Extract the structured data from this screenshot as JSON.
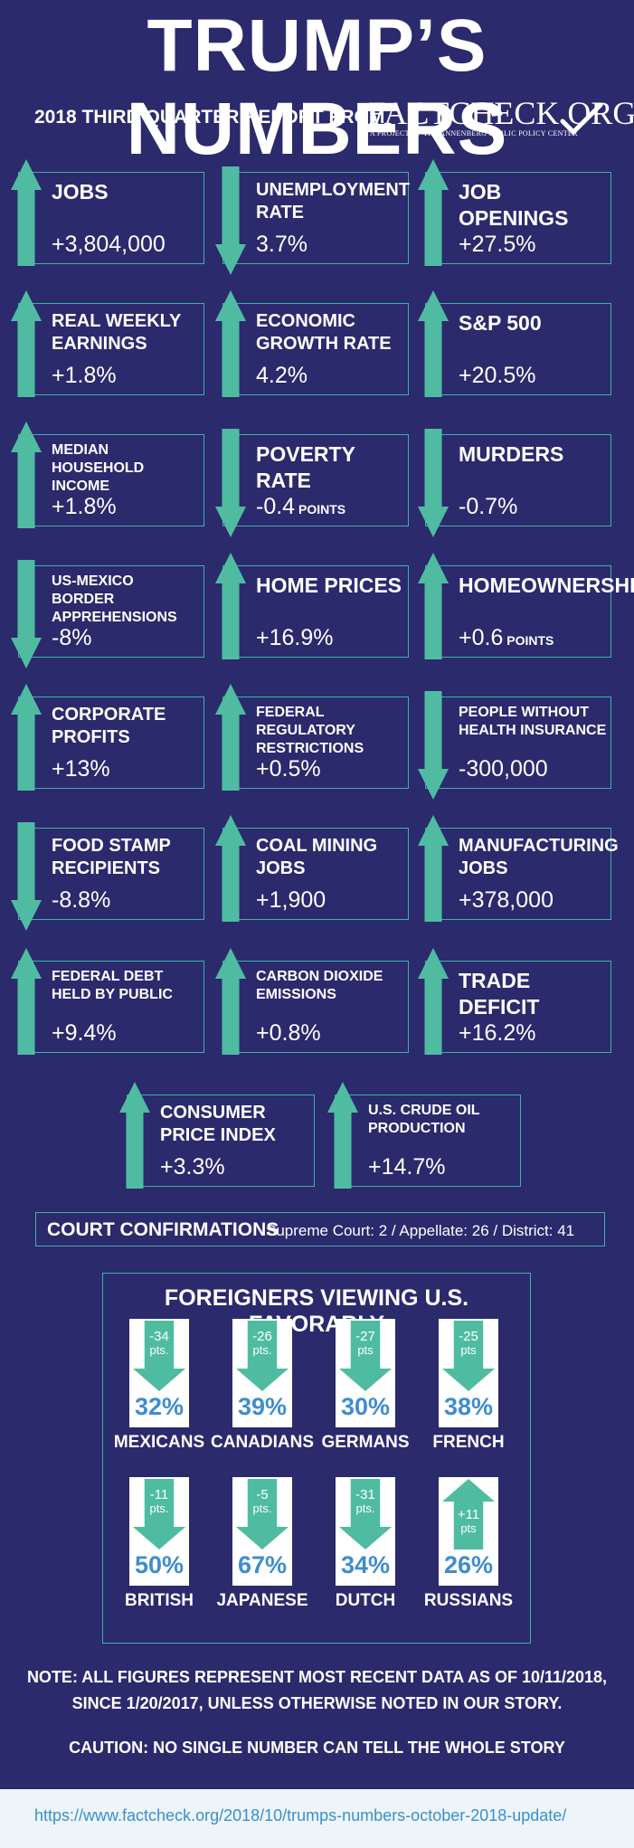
{
  "header": {
    "title": "TRUMP’S NUMBERS",
    "subtitle": "2018 THIRD QUARTER REPORT FROM",
    "logo_text": "FACTCHECK.ORG",
    "logo_tagline": "A PROJECT OF THE ANNENBERG PUBLIC POLICY CENTER"
  },
  "metrics": [
    {
      "label": "JOBS",
      "value": "+3,804,000",
      "direction": "up"
    },
    {
      "label": "UNEMPLOYMENT RATE",
      "value": "3.7%",
      "direction": "down"
    },
    {
      "label": "JOB OPENINGS",
      "value": "+27.5%",
      "direction": "up"
    },
    {
      "label": "REAL WEEKLY EARNINGS",
      "value": "+1.8%",
      "direction": "up"
    },
    {
      "label": "ECONOMIC GROWTH RATE",
      "value": "4.2%",
      "direction": "up"
    },
    {
      "label": "S&P 500",
      "value": "+20.5%",
      "direction": "up"
    },
    {
      "label": "MEDIAN HOUSEHOLD INCOME",
      "value": "+1.8%",
      "direction": "up"
    },
    {
      "label": "POVERTY RATE",
      "value": "-0.4",
      "unit": "POINTS",
      "direction": "down"
    },
    {
      "label": "MURDERS",
      "value": "-0.7%",
      "direction": "down"
    },
    {
      "label": "US-MEXICO BORDER APPREHENSIONS",
      "value": "-8%",
      "direction": "down"
    },
    {
      "label": "HOME PRICES",
      "value": "+16.9%",
      "direction": "up"
    },
    {
      "label": "HOMEOWNERSHIP",
      "value": "+0.6",
      "unit": "POINTS",
      "direction": "up"
    },
    {
      "label": "CORPORATE PROFITS",
      "value": "+13%",
      "direction": "up"
    },
    {
      "label": "FEDERAL REGULATORY RESTRICTIONS",
      "value": "+0.5%",
      "direction": "up"
    },
    {
      "label": "PEOPLE WITHOUT HEALTH INSURANCE",
      "value": "-300,000",
      "direction": "down"
    },
    {
      "label": "FOOD STAMP RECIPIENTS",
      "value": "-8.8%",
      "direction": "down"
    },
    {
      "label": "COAL MINING JOBS",
      "value": "+1,900",
      "direction": "up"
    },
    {
      "label": "MANUFACTURING JOBS",
      "value": "+378,000",
      "direction": "up"
    },
    {
      "label": "FEDERAL DEBT HELD BY PUBLIC",
      "value": "+9.4%",
      "direction": "up"
    },
    {
      "label": "CARBON DIOXIDE EMISSIONS",
      "value": "+0.8%",
      "direction": "up"
    },
    {
      "label": "TRADE DEFICIT",
      "value": "+16.2%",
      "direction": "up"
    },
    {
      "label": "CONSUMER PRICE INDEX",
      "value": "+3.3%",
      "direction": "up"
    },
    {
      "label": "U.S. CRUDE OIL PRODUCTION",
      "value": "+14.7%",
      "direction": "up"
    }
  ],
  "court": {
    "label": "COURT CONFIRMATIONS",
    "detail": "Supreme Court: 2 / Appellate: 26 / District: 41"
  },
  "favorability": {
    "title": "FOREIGNERS VIEWING U.S. FAVORABLY",
    "items": [
      {
        "country": "MEXICANS",
        "change": "-34",
        "unit": "pts.",
        "percent": "32%",
        "direction": "down"
      },
      {
        "country": "CANADIANS",
        "change": "-26",
        "unit": "pts.",
        "percent": "39%",
        "direction": "down"
      },
      {
        "country": "GERMANS",
        "change": "-27",
        "unit": "pts",
        "percent": "30%",
        "direction": "down"
      },
      {
        "country": "FRENCH",
        "change": "-25",
        "unit": "pts",
        "percent": "38%",
        "direction": "down"
      },
      {
        "country": "BRITISH",
        "change": "-11",
        "unit": "pts.",
        "percent": "50%",
        "direction": "down"
      },
      {
        "country": "JAPANESE",
        "change": "-5",
        "unit": "pts.",
        "percent": "67%",
        "direction": "down"
      },
      {
        "country": "DUTCH",
        "change": "-31",
        "unit": "pts.",
        "percent": "34%",
        "direction": "down"
      },
      {
        "country": "RUSSIANS",
        "change": "+11",
        "unit": "pts",
        "percent": "26%",
        "direction": "up"
      }
    ]
  },
  "notes": {
    "note_line1": "NOTE:  ALL FIGURES REPRESENT MOST RECENT DATA AS OF 10/11/2018,",
    "note_line2": "SINCE 1/20/2017, UNLESS OTHERWISE NOTED IN OUR STORY.",
    "caution": "CAUTION: NO SINGLE NUMBER CAN TELL THE WHOLE STORY"
  },
  "footer": {
    "url": "https://www.factcheck.org/2018/10/trumps-numbers-october-2018-update/"
  },
  "colors": {
    "background": "#2b2a6d",
    "arrow": "#4fbca2",
    "border": "#3fb0a9",
    "percent": "#3f8dcd"
  }
}
